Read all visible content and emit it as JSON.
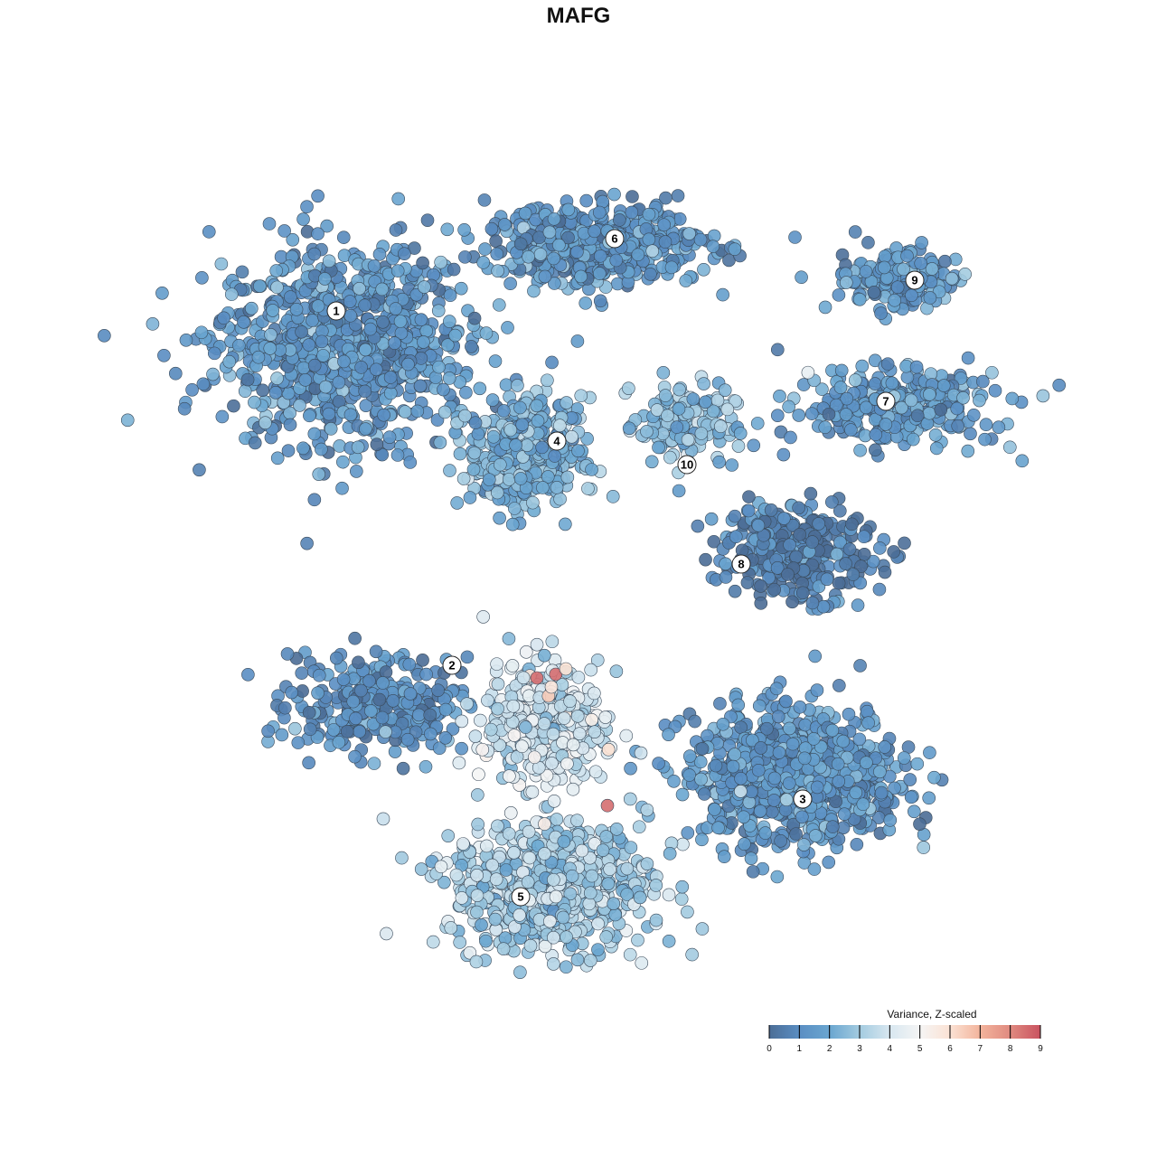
{
  "chart_data": {
    "type": "scatter",
    "title": "MAFG",
    "xlabel": "",
    "ylabel": "",
    "grid": false,
    "axes_visible": false,
    "legend": {
      "title": "Variance, Z-scaled",
      "placement": "bottom-right",
      "ticks": [
        "0",
        "1",
        "2",
        "3",
        "4",
        "5",
        "6",
        "7",
        "8",
        "9"
      ],
      "range": [
        0,
        9
      ],
      "colormap": [
        "#4b6d96",
        "#5a8ec3",
        "#6aa6d0",
        "#a3cbe0",
        "#d8e7f0",
        "#f5f5f5",
        "#fbe2d4",
        "#f3b49c",
        "#e08a80",
        "#c9525f"
      ]
    },
    "clusters": [
      {
        "label": "1",
        "label_pos": [
          -6.7,
          7.4
        ],
        "center": [
          -6.5,
          6.5
        ],
        "spread": [
          3.2,
          2.5
        ],
        "mean_value": 1.3
      },
      {
        "label": "2",
        "label_pos": [
          -3.5,
          -2.4
        ],
        "center": [
          -5.5,
          -3.5
        ],
        "spread": [
          2.2,
          1.2
        ],
        "mean_value": 1.0
      },
      {
        "label": "3",
        "label_pos": [
          6.2,
          -6.1
        ],
        "center": [
          6.0,
          -5.5
        ],
        "spread": [
          2.7,
          1.7
        ],
        "mean_value": 1.4
      },
      {
        "label": "4",
        "label_pos": [
          -0.6,
          3.8
        ],
        "center": [
          -1.5,
          3.5
        ],
        "spread": [
          1.4,
          1.3
        ],
        "mean_value": 2.2
      },
      {
        "label": "5",
        "label_pos": [
          -1.6,
          -8.8
        ],
        "center": [
          -0.75,
          -8.5
        ],
        "spread": [
          2.5,
          1.6
        ],
        "mean_value": 3.1
      },
      {
        "label": "6",
        "label_pos": [
          1.0,
          9.4
        ],
        "center": [
          0.5,
          9.25
        ],
        "spread": [
          2.8,
          1.0
        ],
        "mean_value": 1.4
      },
      {
        "label": "7",
        "label_pos": [
          8.5,
          4.9
        ],
        "center": [
          8.75,
          4.75
        ],
        "spread": [
          2.5,
          0.9
        ],
        "mean_value": 1.6
      },
      {
        "label": "8",
        "label_pos": [
          4.5,
          0.4
        ],
        "center": [
          6.0,
          0.75
        ],
        "spread": [
          2.0,
          1.2
        ],
        "mean_value": 0.6
      },
      {
        "label": "9",
        "label_pos": [
          9.3,
          8.25
        ],
        "center": [
          8.75,
          8.25
        ],
        "spread": [
          1.6,
          0.8
        ],
        "mean_value": 1.6
      },
      {
        "label": "10",
        "label_pos": [
          3.0,
          3.15
        ],
        "center": [
          3.0,
          4.25
        ],
        "spread": [
          1.2,
          1.0
        ],
        "mean_value": 2.6
      },
      {
        "label": "",
        "center": [
          -1.0,
          -4.0
        ],
        "spread": [
          1.5,
          1.5
        ],
        "mean_value": 4.0
      }
    ],
    "highlight_points": [
      {
        "x": -1.15,
        "y": -2.75,
        "value": 8.5
      },
      {
        "x": -0.63,
        "y": -2.65,
        "value": 8.5
      },
      {
        "x": 0.8,
        "y": -6.28,
        "value": 8.5
      },
      {
        "x": -0.35,
        "y": -2.5,
        "value": 6.0
      },
      {
        "x": -0.83,
        "y": -3.25,
        "value": 6.5
      },
      {
        "x": 0.83,
        "y": -4.73,
        "value": 6.0
      },
      {
        "x": -0.75,
        "y": -3.0,
        "value": 5.8
      }
    ]
  }
}
